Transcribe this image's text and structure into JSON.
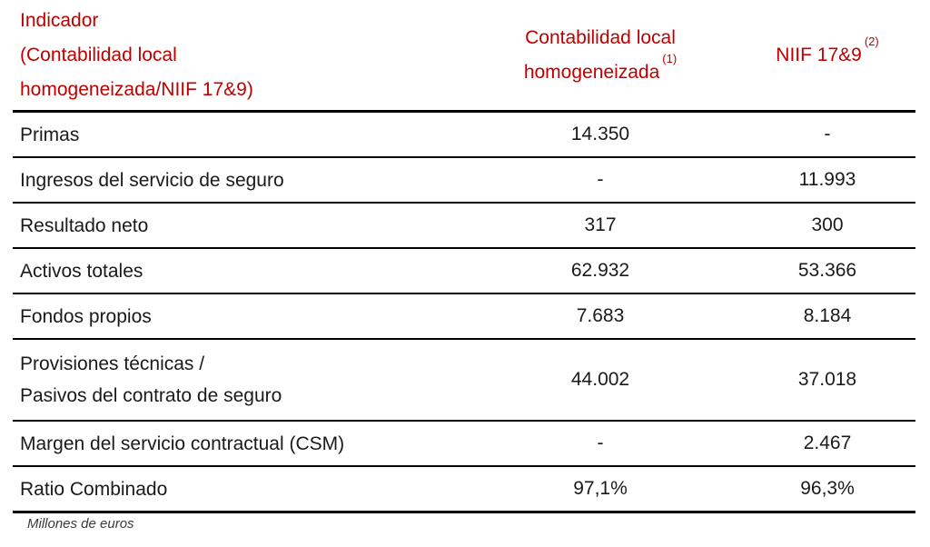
{
  "colors": {
    "header_red": "#C00000",
    "body_text": "#1A1A1A",
    "rule_line": "#000000",
    "footnote_text": "#3A3A3A"
  },
  "table": {
    "header": {
      "indicator": "Indicador\n(Contabilidad local\nhomogeneizada/NIIF 17&9)",
      "local": "Contabilidad local\nhomogeneizada",
      "local_sup": "(1)",
      "niif": "NIIF 17&9",
      "niif_sup": "(2)"
    },
    "rows": [
      {
        "label": "Primas",
        "local": "14.350",
        "niif": "-"
      },
      {
        "label": "Ingresos del servicio de seguro",
        "local": "-",
        "niif": "11.993"
      },
      {
        "label": "Resultado neto",
        "local": "317",
        "niif": "300"
      },
      {
        "label": "Activos totales",
        "local": "62.932",
        "niif": "53.366"
      },
      {
        "label": "Fondos propios",
        "local": "7.683",
        "niif": "8.184"
      },
      {
        "label": "Provisiones técnicas /\nPasivos del contrato de seguro",
        "local": "44.002",
        "niif": "37.018"
      },
      {
        "label": "Margen del servicio contractual (CSM)",
        "local": "-",
        "niif": "2.467"
      },
      {
        "label": "Ratio Combinado",
        "local": "97,1%",
        "niif": "96,3%"
      }
    ],
    "footnote": "Millones de euros"
  }
}
